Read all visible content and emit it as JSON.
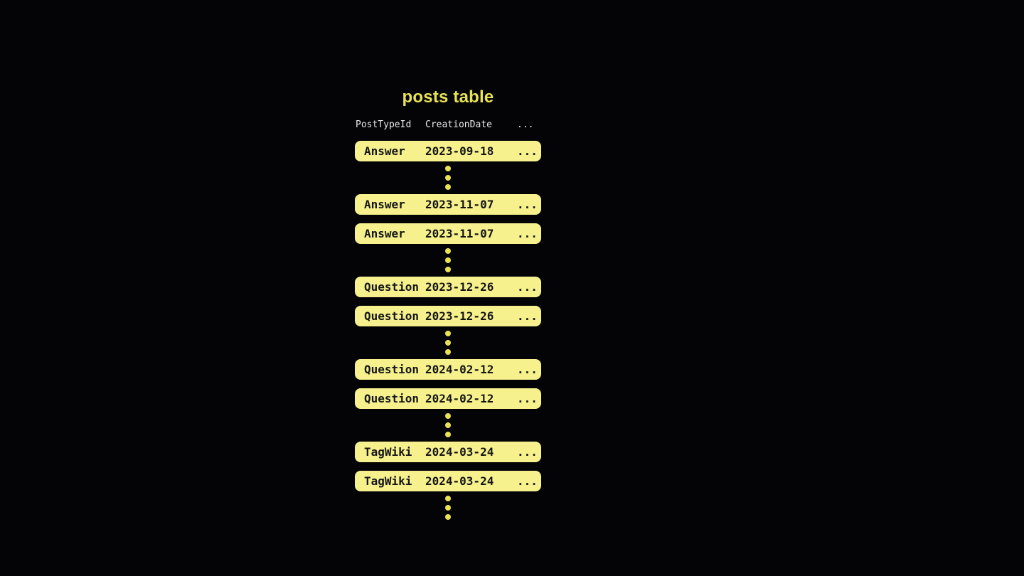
{
  "theme": {
    "background": "#040406",
    "accent_yellow": "#e9e255",
    "row_fill": "#f6f18d",
    "row_text": "#151515",
    "header_text": "#e8e8e8"
  },
  "diagram": {
    "title": "posts table",
    "header": {
      "col_post_type": "PostTypeId",
      "col_creation_date": "CreationDate",
      "col_more": "..."
    },
    "rows": [
      {
        "post_type": "Answer",
        "creation_date": "2023-09-18",
        "more": "..."
      },
      {
        "post_type": "Answer",
        "creation_date": "2023-11-07",
        "more": "..."
      },
      {
        "post_type": "Answer",
        "creation_date": "2023-11-07",
        "more": "..."
      },
      {
        "post_type": "Question",
        "creation_date": "2023-12-26",
        "more": "..."
      },
      {
        "post_type": "Question",
        "creation_date": "2023-12-26",
        "more": "..."
      },
      {
        "post_type": "Question",
        "creation_date": "2024-02-12",
        "more": "..."
      },
      {
        "post_type": "Question",
        "creation_date": "2024-02-12",
        "more": "..."
      },
      {
        "post_type": "TagWiki",
        "creation_date": "2024-03-24",
        "more": "..."
      },
      {
        "post_type": "TagWiki",
        "creation_date": "2024-03-24",
        "more": "..."
      }
    ]
  }
}
